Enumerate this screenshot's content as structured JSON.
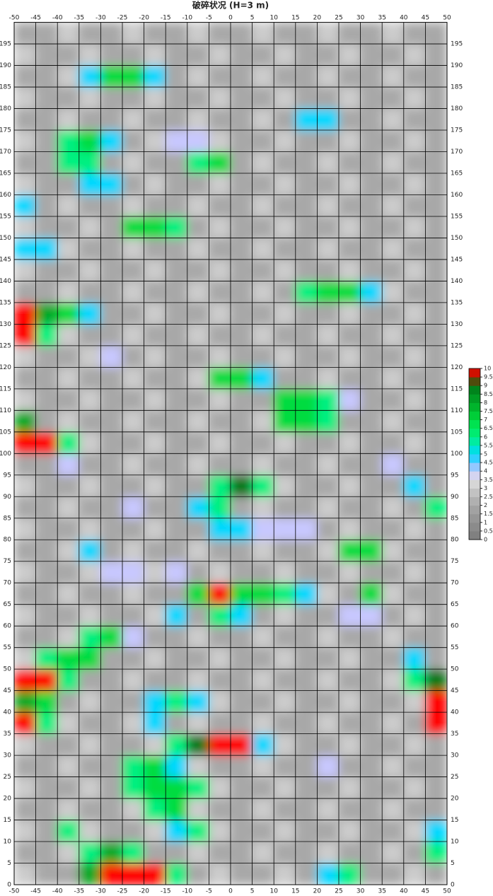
{
  "chart_data": {
    "type": "heatmap",
    "title": "破碎状况 (H=3 m)",
    "xlim": [
      -50,
      50
    ],
    "ylim": [
      0,
      200
    ],
    "xticks": [
      -50,
      -45,
      -40,
      -35,
      -30,
      -25,
      -20,
      -15,
      -10,
      -5,
      0,
      5,
      10,
      15,
      20,
      25,
      30,
      35,
      40,
      45,
      50
    ],
    "yticks": [
      0,
      5,
      10,
      15,
      20,
      25,
      30,
      35,
      40,
      45,
      50,
      55,
      60,
      65,
      70,
      75,
      80,
      85,
      90,
      95,
      100,
      105,
      110,
      115,
      120,
      125,
      130,
      135,
      140,
      145,
      150,
      155,
      160,
      165,
      170,
      175,
      180,
      185,
      190,
      195
    ],
    "grid": true,
    "colorbar_ticks": [
      0,
      0.5,
      1,
      1.5,
      2,
      2.5,
      3,
      3.5,
      4,
      4.5,
      5,
      5.5,
      6,
      6.5,
      7,
      7.5,
      8,
      8.5,
      9,
      9.5,
      10
    ],
    "colorbar_colors": [
      "#7a7a7a",
      "#858585",
      "#909090",
      "#9c9c9c",
      "#a8a8a8",
      "#b8b8b8",
      "#cccccc",
      "#e0e0e0",
      "#c8c8ff",
      "#60c8ff",
      "#00d8ff",
      "#00e8c0",
      "#00f080",
      "#00e860",
      "#00dc40",
      "#00c030",
      "#00a828",
      "#009020",
      "#007818",
      "#a02000",
      "#ff0000"
    ],
    "z": [
      [
        3,
        2,
        2,
        8,
        10,
        10,
        10,
        6,
        2,
        3,
        2,
        2,
        3,
        2,
        5,
        6,
        2,
        2,
        3,
        2
      ],
      [
        2,
        2,
        3,
        6,
        8,
        6,
        2,
        2,
        3,
        2,
        2,
        3,
        2,
        2,
        3,
        2,
        2,
        3,
        2,
        6
      ],
      [
        3,
        2,
        6,
        3,
        2,
        2,
        3,
        5,
        6,
        3,
        2,
        2,
        3,
        2,
        2,
        3,
        2,
        2,
        3,
        5
      ],
      [
        2,
        2,
        3,
        2,
        2,
        3,
        6,
        7,
        3,
        2,
        2,
        3,
        2,
        2,
        3,
        2,
        2,
        3,
        2,
        2
      ],
      [
        3,
        2,
        2,
        3,
        2,
        6,
        7,
        7,
        6,
        3,
        2,
        2,
        3,
        2,
        2,
        3,
        2,
        2,
        3,
        2
      ],
      [
        2,
        2,
        3,
        2,
        2,
        6,
        7,
        5,
        3,
        2,
        2,
        3,
        2,
        2,
        4,
        2,
        2,
        3,
        2,
        2
      ],
      [
        3,
        2,
        2,
        3,
        2,
        2,
        3,
        6,
        9,
        10,
        10,
        5,
        3,
        2,
        2,
        3,
        2,
        2,
        3,
        2
      ],
      [
        10,
        6,
        3,
        2,
        2,
        3,
        5,
        2,
        3,
        2,
        2,
        3,
        2,
        2,
        3,
        2,
        2,
        3,
        2,
        10
      ],
      [
        8,
        7,
        2,
        3,
        2,
        2,
        5,
        6,
        5,
        3,
        2,
        2,
        3,
        2,
        2,
        3,
        2,
        2,
        3,
        10
      ],
      [
        10,
        10,
        6,
        2,
        2,
        3,
        2,
        2,
        3,
        2,
        2,
        3,
        2,
        2,
        3,
        2,
        2,
        3,
        6,
        9
      ],
      [
        3,
        6,
        7,
        7,
        2,
        2,
        3,
        2,
        2,
        3,
        2,
        2,
        3,
        2,
        2,
        3,
        2,
        2,
        5,
        2
      ],
      [
        2,
        2,
        3,
        6,
        7,
        4,
        2,
        2,
        3,
        2,
        2,
        3,
        2,
        2,
        3,
        2,
        2,
        3,
        2,
        2
      ],
      [
        3,
        2,
        2,
        3,
        2,
        2,
        3,
        5,
        2,
        6,
        5,
        2,
        3,
        2,
        2,
        4,
        4,
        2,
        3,
        2
      ],
      [
        2,
        2,
        3,
        2,
        2,
        3,
        2,
        2,
        7,
        10,
        7,
        7,
        6,
        5,
        3,
        2,
        7,
        3,
        2,
        2
      ],
      [
        3,
        2,
        2,
        3,
        4,
        4,
        3,
        4,
        2,
        3,
        2,
        2,
        3,
        2,
        2,
        3,
        2,
        2,
        3,
        2
      ],
      [
        2,
        2,
        3,
        5,
        2,
        3,
        2,
        2,
        3,
        2,
        2,
        3,
        2,
        2,
        3,
        7,
        7,
        3,
        2,
        2
      ],
      [
        3,
        2,
        2,
        3,
        2,
        2,
        3,
        2,
        2,
        5,
        5,
        4,
        4,
        4,
        2,
        3,
        2,
        2,
        3,
        2
      ],
      [
        2,
        2,
        3,
        2,
        2,
        4,
        2,
        2,
        5,
        6,
        2,
        3,
        2,
        2,
        3,
        2,
        2,
        3,
        2,
        6
      ],
      [
        3,
        2,
        2,
        3,
        2,
        2,
        3,
        2,
        2,
        6,
        9,
        6,
        3,
        2,
        2,
        3,
        2,
        2,
        5,
        2
      ],
      [
        2,
        2,
        4,
        2,
        2,
        3,
        2,
        2,
        3,
        2,
        2,
        3,
        2,
        2,
        3,
        2,
        2,
        4,
        2,
        2
      ],
      [
        10,
        10,
        6,
        3,
        2,
        2,
        3,
        2,
        2,
        3,
        2,
        2,
        3,
        2,
        2,
        3,
        2,
        2,
        3,
        2
      ],
      [
        8,
        2,
        3,
        2,
        2,
        3,
        2,
        2,
        3,
        2,
        2,
        3,
        7,
        7,
        6,
        2,
        2,
        3,
        2,
        2
      ],
      [
        3,
        2,
        2,
        3,
        2,
        2,
        3,
        2,
        2,
        3,
        2,
        2,
        7,
        7,
        6,
        4,
        2,
        2,
        3,
        2
      ],
      [
        2,
        2,
        3,
        2,
        2,
        3,
        2,
        2,
        3,
        7,
        7,
        5,
        2,
        2,
        3,
        2,
        2,
        3,
        2,
        2
      ],
      [
        3,
        2,
        2,
        3,
        4,
        2,
        3,
        2,
        2,
        3,
        2,
        2,
        3,
        2,
        2,
        3,
        2,
        2,
        3,
        2
      ],
      [
        10,
        6,
        3,
        2,
        2,
        3,
        2,
        2,
        3,
        2,
        2,
        3,
        2,
        2,
        3,
        2,
        2,
        3,
        2,
        2
      ],
      [
        10,
        8,
        7,
        5,
        2,
        2,
        3,
        2,
        2,
        3,
        2,
        2,
        3,
        2,
        2,
        3,
        2,
        2,
        3,
        2
      ],
      [
        2,
        2,
        3,
        2,
        2,
        3,
        2,
        2,
        3,
        2,
        2,
        3,
        2,
        6,
        7,
        7,
        5,
        3,
        2,
        2
      ],
      [
        3,
        2,
        2,
        3,
        2,
        2,
        3,
        2,
        2,
        3,
        2,
        2,
        3,
        2,
        2,
        3,
        2,
        2,
        3,
        2
      ],
      [
        5,
        5,
        3,
        2,
        2,
        3,
        2,
        2,
        3,
        2,
        2,
        3,
        2,
        2,
        3,
        2,
        2,
        3,
        2,
        2
      ],
      [
        3,
        2,
        2,
        3,
        2,
        7,
        7,
        6,
        2,
        3,
        2,
        2,
        3,
        2,
        2,
        3,
        2,
        2,
        3,
        2
      ],
      [
        5,
        2,
        3,
        2,
        2,
        3,
        2,
        2,
        3,
        2,
        2,
        3,
        2,
        2,
        3,
        2,
        2,
        3,
        2,
        2
      ],
      [
        3,
        2,
        2,
        5,
        5,
        2,
        3,
        2,
        2,
        3,
        2,
        2,
        3,
        2,
        2,
        3,
        2,
        2,
        3,
        2
      ],
      [
        2,
        2,
        6,
        6,
        2,
        3,
        2,
        2,
        6,
        7,
        2,
        3,
        2,
        2,
        3,
        2,
        2,
        3,
        2,
        2
      ],
      [
        3,
        2,
        6,
        7,
        5,
        2,
        3,
        4,
        4,
        3,
        2,
        2,
        3,
        2,
        2,
        3,
        2,
        2,
        3,
        2
      ],
      [
        2,
        2,
        3,
        2,
        2,
        3,
        2,
        2,
        3,
        2,
        2,
        3,
        2,
        5,
        5,
        2,
        2,
        3,
        2,
        2
      ],
      [
        3,
        2,
        2,
        3,
        2,
        2,
        3,
        2,
        2,
        3,
        2,
        2,
        3,
        2,
        2,
        3,
        2,
        2,
        3,
        2
      ],
      [
        2,
        2,
        3,
        5,
        7,
        7,
        5,
        2,
        3,
        2,
        2,
        3,
        2,
        2,
        3,
        2,
        2,
        3,
        2,
        2
      ],
      [
        3,
        2,
        2,
        3,
        2,
        2,
        3,
        2,
        2,
        3,
        2,
        2,
        3,
        2,
        2,
        3,
        2,
        2,
        3,
        2
      ],
      [
        2,
        2,
        3,
        2,
        2,
        3,
        2,
        2,
        3,
        2,
        2,
        3,
        2,
        2,
        3,
        2,
        2,
        3,
        2,
        2
      ]
    ]
  }
}
